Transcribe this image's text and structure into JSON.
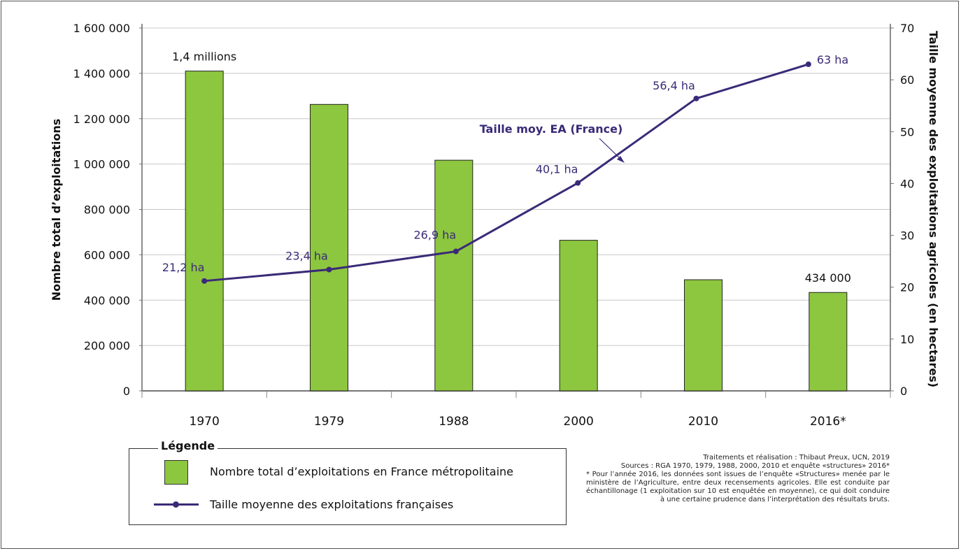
{
  "chart_data": {
    "type": "bar",
    "categories": [
      "1970",
      "1979",
      "1988",
      "2000",
      "2010",
      "2016*"
    ],
    "series": [
      {
        "name": "Nombre total d’exploitations en France métropolitaine",
        "type": "bar",
        "axis": "left",
        "values": [
          1410000,
          1263000,
          1017000,
          664000,
          490000,
          434000
        ],
        "data_labels": [
          "1,4 millions",
          "",
          "",
          "",
          "",
          "434 000"
        ]
      },
      {
        "name": "Taille moyenne des exploitations françaises",
        "type": "line",
        "axis": "right",
        "values": [
          21.2,
          23.4,
          26.9,
          40.1,
          56.4,
          63
        ],
        "data_labels": [
          "21,2 ha",
          "23,4 ha",
          "26,9 ha",
          "40,1 ha",
          "56,4 ha",
          "63 ha"
        ]
      }
    ],
    "y_left": {
      "label": "Nombre total d’exploitations",
      "range": [
        0,
        1600000
      ],
      "ticks": [
        "0",
        "200 000",
        "400 000",
        "600 000",
        "800 000",
        "1 000 000",
        "1 200 000",
        "1 400 000",
        "1 600 000"
      ]
    },
    "y_right": {
      "label": "Taille moyenne des exploitations agricoles (en hectares)",
      "range": [
        0,
        70
      ],
      "ticks": [
        "0",
        "10",
        "20",
        "30",
        "40",
        "50",
        "60",
        "70"
      ]
    },
    "annotation": "Taille moy. EA (France)",
    "grid": true,
    "legend_position": "bottom-left"
  },
  "legend": {
    "title": "Légende",
    "bar_label": "Nombre total d’exploitations en France métropolitaine",
    "line_label": "Taille moyenne des exploitations françaises"
  },
  "notes": {
    "credit": "Traitements et réalisation : Thibaut Preux, UCN, 2019",
    "sources": "Sources : RGA 1970, 1979, 1988, 2000, 2010 et enquête «structures» 2016*",
    "footnote": "* Pour l’année 2016, les données sont issues de l’enquête «Structures» menée par le ministère de l’Agriculture, entre deux recensements agricoles. Elle est conduite par échantillonage (1 exploitation sur 10 est enquêtée en moyenne), ce qui doit conduire à une certaine prudence dans l’interprétation des résultats bruts."
  },
  "colors": {
    "bar": "#8dc63f",
    "line": "#3a2a78",
    "line_labels": "#3a2a78",
    "grid": "#c8c8c8"
  }
}
